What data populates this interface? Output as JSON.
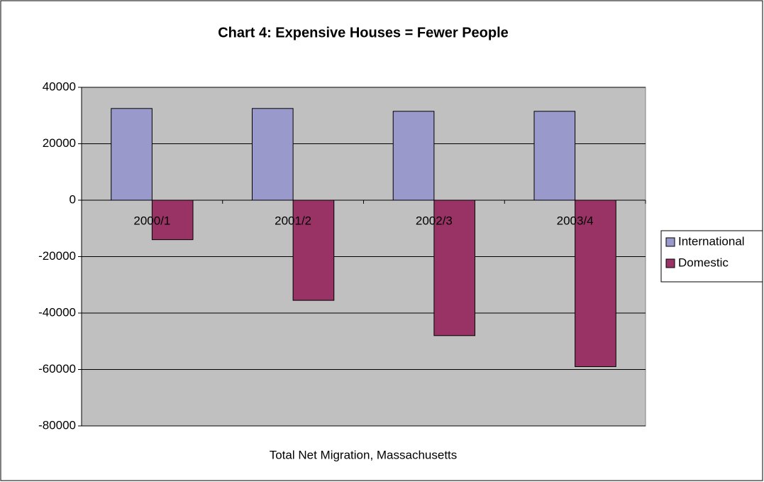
{
  "chart_data": {
    "type": "bar",
    "title": "Chart 4: Expensive Houses = Fewer People",
    "x_label": "Total Net Migration, Massachusetts",
    "categories": [
      "2000/1",
      "2001/2",
      "2002/3",
      "2003/4"
    ],
    "series": [
      {
        "name": "International",
        "color": "#9999cc",
        "values": [
          32500,
          32500,
          31500,
          31500
        ]
      },
      {
        "name": "Domestic",
        "color": "#993366",
        "values": [
          -14000,
          -35500,
          -48000,
          -59000
        ]
      }
    ],
    "ylim": [
      -80000,
      40000
    ],
    "yticks": [
      -80000,
      -60000,
      -40000,
      -20000,
      0,
      20000,
      40000
    ],
    "grid": true,
    "legend": "right"
  }
}
